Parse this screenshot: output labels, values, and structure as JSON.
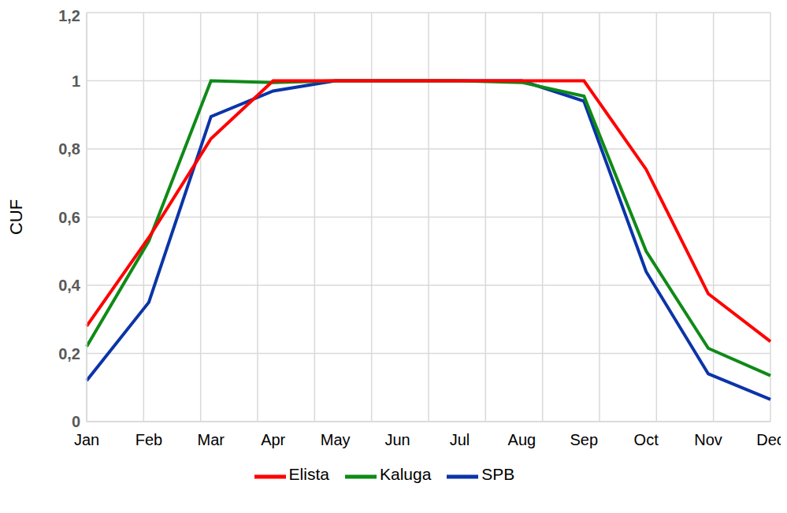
{
  "chart_data": {
    "type": "line",
    "y_label": "CUF",
    "categories": [
      "Jan",
      "Feb",
      "Mar",
      "Apr",
      "May",
      "Jun",
      "Jul",
      "Aug",
      "Sep",
      "Oct",
      "Nov",
      "Dec"
    ],
    "series": [
      {
        "name": "SPB",
        "color": "#0b34a8",
        "values": [
          0.12,
          0.35,
          0.895,
          0.97,
          1,
          1,
          1,
          1,
          0.94,
          0.44,
          0.14,
          0.065
        ]
      },
      {
        "name": "Kaluga",
        "color": "#0f8a17",
        "values": [
          0.22,
          0.53,
          1,
          0.995,
          1,
          1,
          1,
          0.995,
          0.955,
          0.5,
          0.215,
          0.135
        ]
      },
      {
        "name": "Elista",
        "color": "#ff0000",
        "values": [
          0.28,
          0.54,
          0.83,
          1,
          1,
          1,
          1,
          1,
          1,
          0.74,
          0.375,
          0.235
        ]
      }
    ],
    "ylim": [
      0,
      1.2
    ],
    "yticks": [
      0,
      {
        "value": 0.2,
        "label": "0,2"
      },
      {
        "value": 0.4,
        "label": "0,4"
      },
      {
        "value": 0.6,
        "label": "0,6"
      },
      {
        "value": 0.8,
        "label": "0,8"
      },
      1,
      {
        "value": 1.2,
        "label": "1,2"
      }
    ],
    "grid": true,
    "legend": "bottom"
  }
}
